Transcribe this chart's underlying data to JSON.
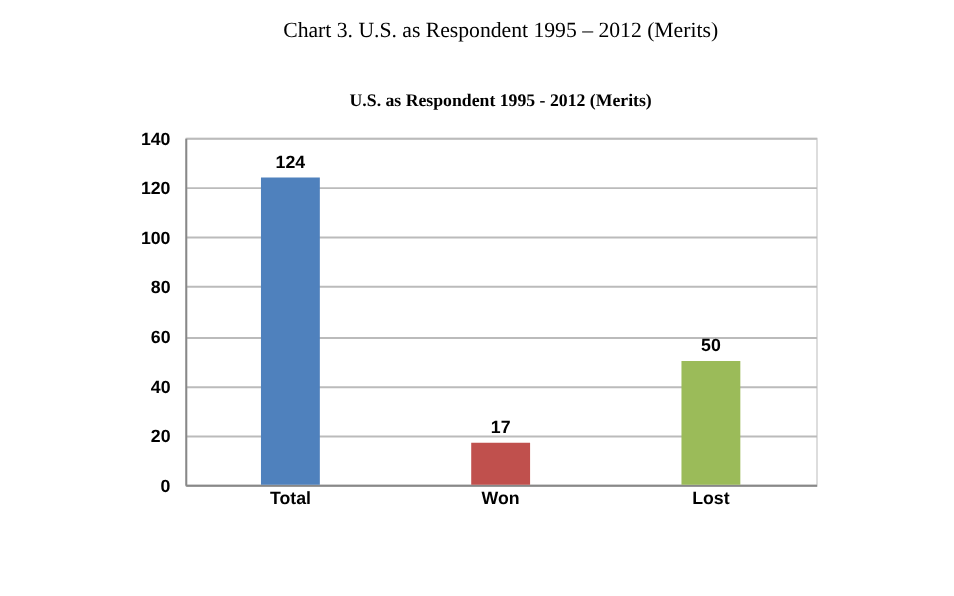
{
  "chart_data": {
    "type": "bar",
    "title": "Chart 3. U.S. as Respondent 1995 – 2012 (Merits)",
    "subtitle": "U.S. as Respondent 1995 - 2012 (Merits)",
    "categories": [
      "Total",
      "Won",
      "Lost"
    ],
    "values": [
      124,
      17,
      50
    ],
    "colors": [
      "#4f81bd",
      "#c0504d",
      "#9bbb59"
    ],
    "ylim": [
      0,
      140
    ],
    "yticks": [
      0,
      20,
      40,
      60,
      80,
      100,
      120,
      140
    ],
    "grid": "y",
    "data_labels": true
  }
}
